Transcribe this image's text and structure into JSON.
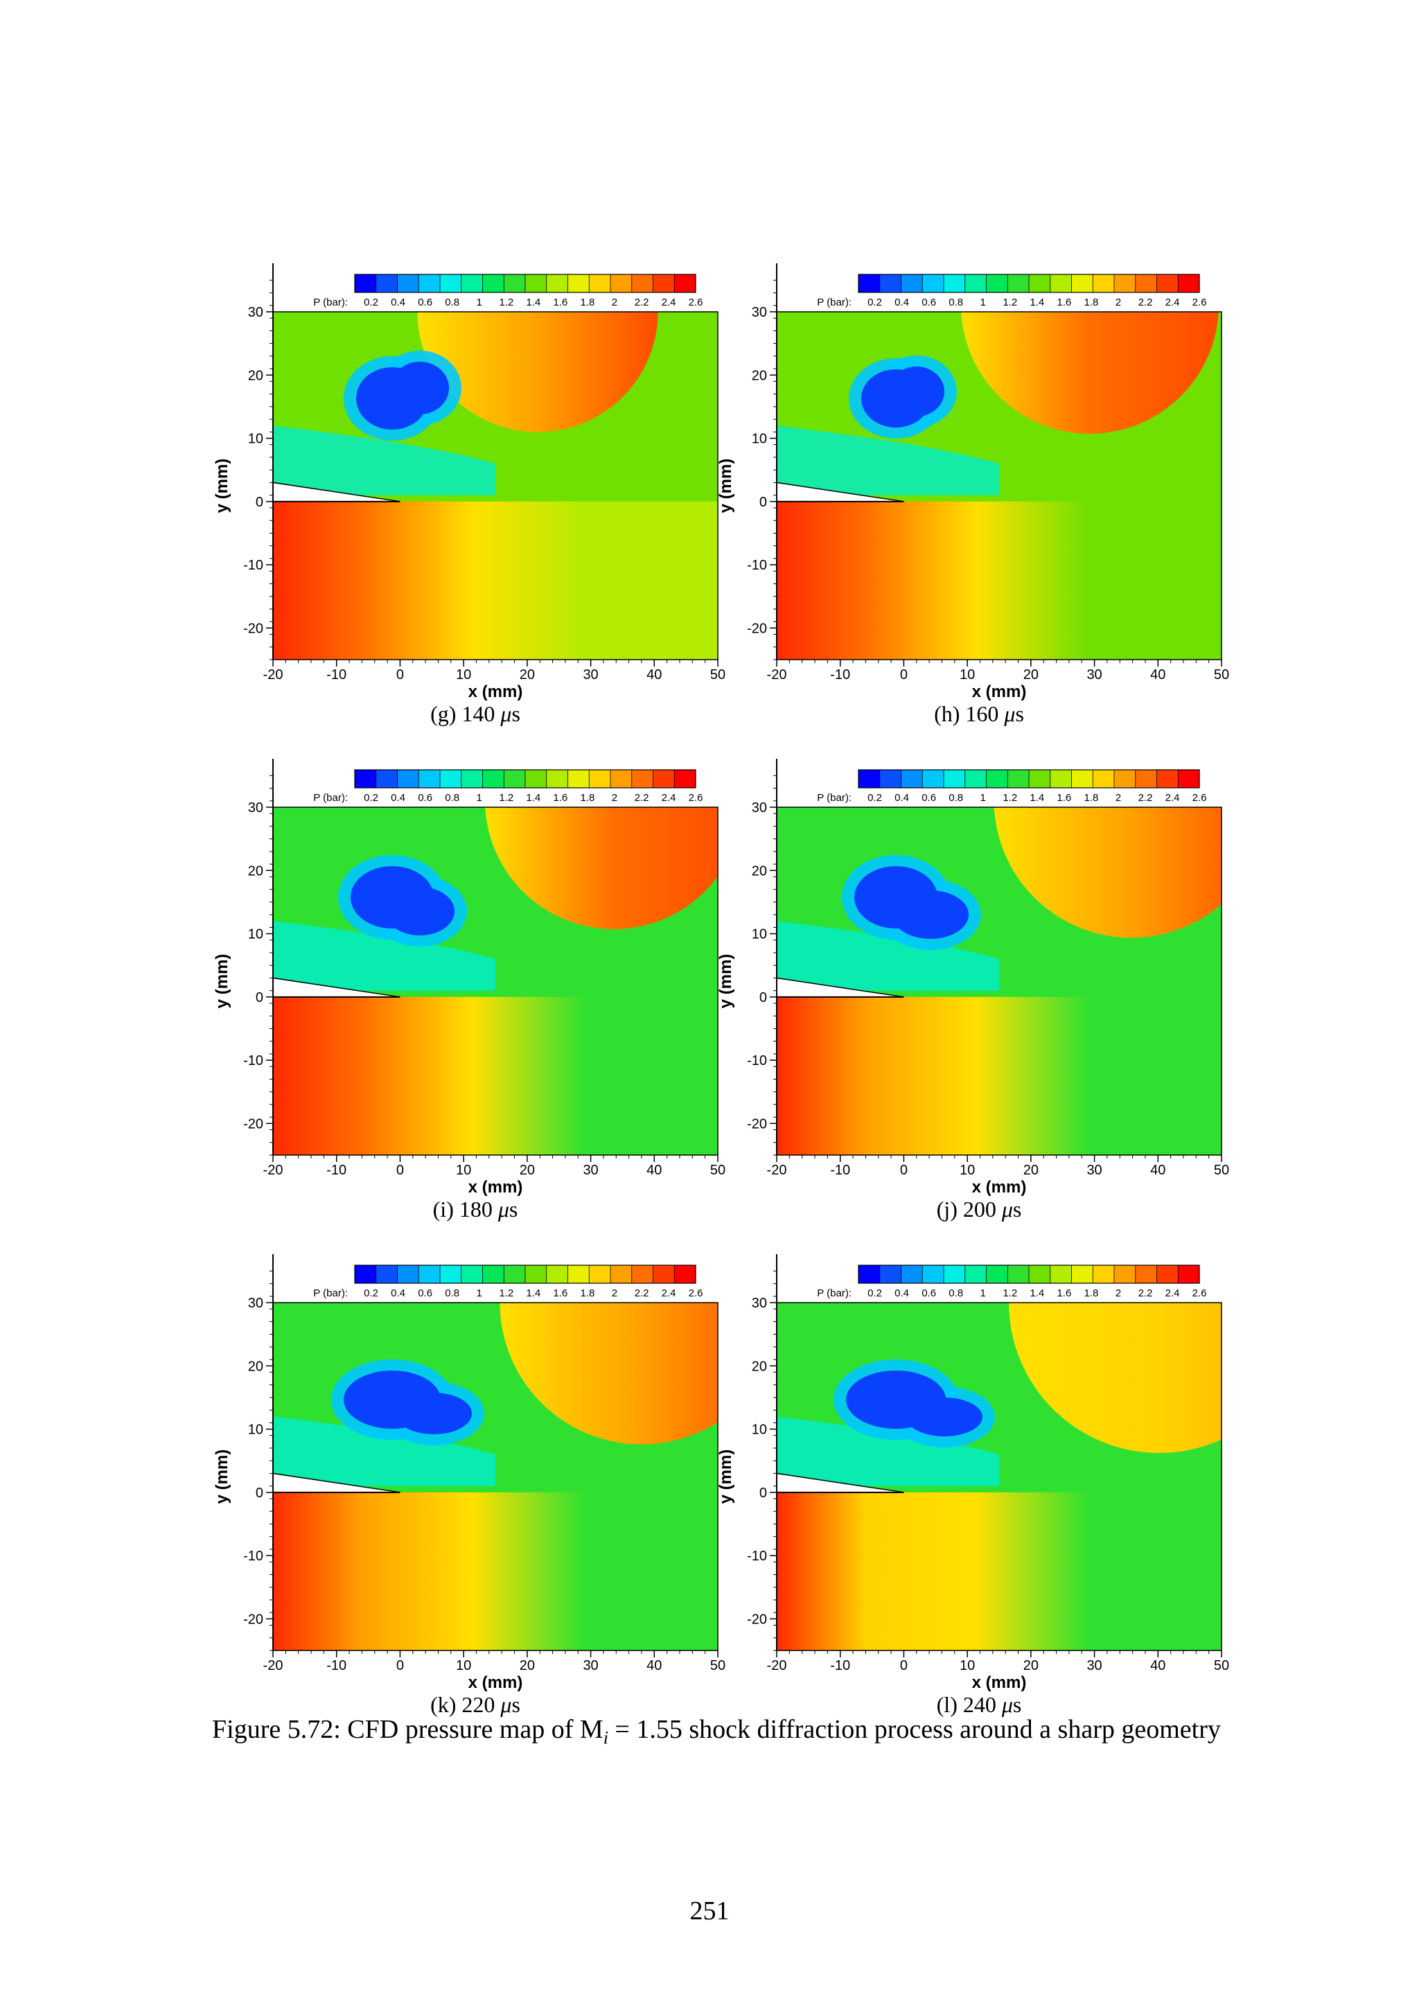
{
  "colorbar": {
    "label": "P (bar):",
    "ticks": [
      "0.2",
      "0.4",
      "0.6",
      "0.8",
      "1",
      "1.2",
      "1.4",
      "1.6",
      "1.8",
      "2",
      "2.2",
      "2.4",
      "2.6"
    ],
    "colors": [
      "#0000ff",
      "#0a50ff",
      "#0090ff",
      "#00c8ff",
      "#00eee6",
      "#00f0a0",
      "#00e85a",
      "#30e030",
      "#70e000",
      "#b4ec00",
      "#e8f000",
      "#ffd200",
      "#ffa000",
      "#ff6e00",
      "#ff3c00",
      "#ff0000"
    ]
  },
  "axes": {
    "xlabel": "x (mm)",
    "ylabel": "y (mm)",
    "xticks": [
      "-20",
      "-10",
      "0",
      "10",
      "20",
      "30",
      "40",
      "50"
    ],
    "yticks": [
      "30",
      "20",
      "10",
      "0",
      "-10",
      "-20"
    ],
    "xlim": [
      -20,
      50
    ],
    "ylim": [
      -25,
      30
    ]
  },
  "panels": [
    {
      "label": "(g) 140",
      "unit_mu": "μ",
      "unit_s": "s",
      "time_us": 140
    },
    {
      "label": "(h) 160",
      "unit_mu": "μ",
      "unit_s": "s",
      "time_us": 160
    },
    {
      "label": "(i) 180",
      "unit_mu": "μ",
      "unit_s": "s",
      "time_us": 180
    },
    {
      "label": "(j) 200",
      "unit_mu": "μ",
      "unit_s": "s",
      "time_us": 200
    },
    {
      "label": "(k) 220",
      "unit_mu": "μ",
      "unit_s": "s",
      "time_us": 220
    },
    {
      "label": "(l) 240",
      "unit_mu": "μ",
      "unit_s": "s",
      "time_us": 240
    }
  ],
  "caption": {
    "prefix": "Figure 5.72: CFD pressure map of M",
    "subscript": "i",
    "suffix": " = 1.55 shock diffraction process around a sharp geometry"
  },
  "page_number": "251"
}
